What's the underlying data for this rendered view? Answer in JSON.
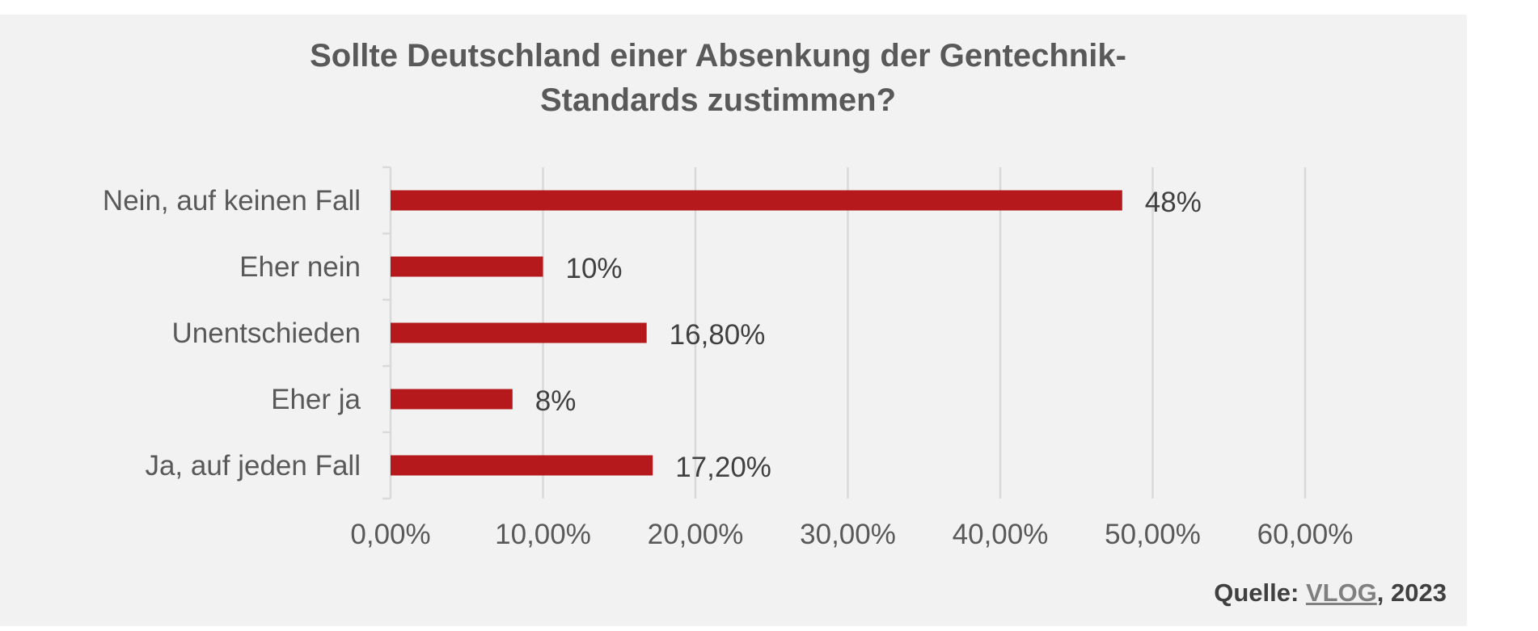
{
  "chart_data": {
    "type": "bar",
    "orientation": "horizontal",
    "title_line1": "Sollte Deutschland einer Absenkung der Gentechnik-",
    "title_line2": "Standards zustimmen?",
    "categories": [
      "Nein, auf keinen Fall",
      "Eher nein",
      "Unentschieden",
      "Eher ja",
      "Ja, auf jeden Fall"
    ],
    "values": [
      48,
      10,
      16.8,
      8,
      17.2
    ],
    "data_labels": [
      "48%",
      "10%",
      "16,80%",
      "8%",
      "17,20%"
    ],
    "xlim": [
      0,
      60
    ],
    "x_ticks": [
      0,
      10,
      20,
      30,
      40,
      50,
      60
    ],
    "x_tick_labels": [
      "0,00%",
      "10,00%",
      "20,00%",
      "30,00%",
      "40,00%",
      "50,00%",
      "60,00%"
    ],
    "grid": true,
    "bar_color": "#b5191b",
    "xlabel": "",
    "ylabel": ""
  },
  "source": {
    "prefix": "Quelle: ",
    "link": "VLOG",
    "suffix": ", 2023"
  }
}
